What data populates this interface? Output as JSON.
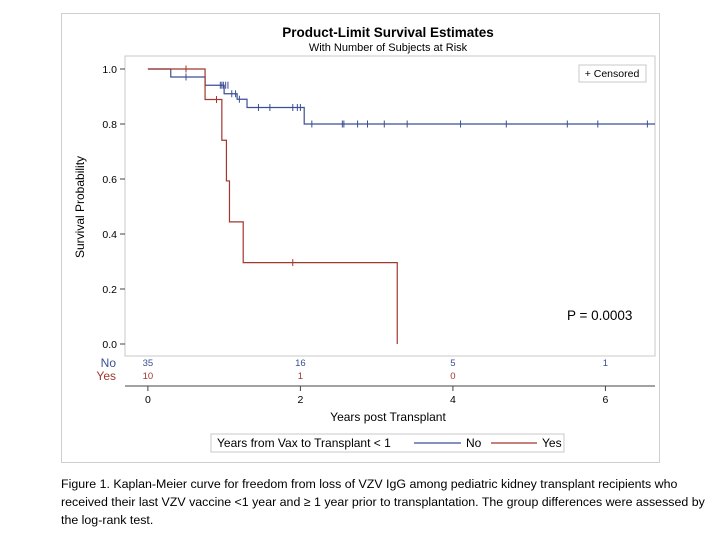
{
  "caption": "Figure 1. Kaplan-Meier curve for freedom from loss of VZV IgG among pediatric kidney transplant recipients who received their last VZV vaccine <1 year and ≥ 1 year prior to transplantation. The group differences were assessed by the log-rank test.",
  "chart_data": {
    "type": "line",
    "title": "Product-Limit Survival Estimates",
    "subtitle": "With Number of Subjects at Risk",
    "xlabel": "Years post Transplant",
    "ylabel": "Survival Probability",
    "xlim": [
      -0.3,
      6.65
    ],
    "ylim": [
      0,
      1.0
    ],
    "x_ticks": [
      0,
      2,
      4,
      6
    ],
    "x_tick_labels": [
      "0",
      "2",
      "4",
      "6"
    ],
    "y_ticks": [
      0,
      0.2,
      0.4,
      0.6,
      0.8,
      1.0
    ],
    "y_tick_labels": [
      "0.0",
      "0.2",
      "0.4",
      "0.6",
      "0.8",
      "1.0"
    ],
    "censored_label": "+ Censored",
    "annotation": "P = 0.0003",
    "legend_title": "Years from Vax to Transplant < 1",
    "legend_position": "bottom",
    "series": [
      {
        "name": "No",
        "color": "#3b4f95",
        "steps": [
          [
            0,
            1.0
          ],
          [
            0.3,
            0.971
          ],
          [
            0.75,
            0.941
          ],
          [
            1.0,
            0.91
          ],
          [
            1.17,
            0.89
          ],
          [
            1.3,
            0.86
          ],
          [
            2.05,
            0.8
          ],
          [
            6.65,
            0.8
          ]
        ],
        "censored": [
          [
            0.5,
            0.971
          ],
          [
            0.95,
            0.941
          ],
          [
            0.97,
            0.941
          ],
          [
            0.99,
            0.941
          ],
          [
            1.02,
            0.941
          ],
          [
            1.05,
            0.941
          ],
          [
            1.1,
            0.91
          ],
          [
            1.15,
            0.91
          ],
          [
            1.2,
            0.89
          ],
          [
            1.45,
            0.86
          ],
          [
            1.6,
            0.86
          ],
          [
            1.9,
            0.86
          ],
          [
            1.96,
            0.86
          ],
          [
            2.0,
            0.86
          ],
          [
            2.15,
            0.8
          ],
          [
            2.55,
            0.8
          ],
          [
            2.57,
            0.8
          ],
          [
            2.75,
            0.8
          ],
          [
            2.88,
            0.8
          ],
          [
            3.1,
            0.8
          ],
          [
            3.4,
            0.8
          ],
          [
            4.1,
            0.8
          ],
          [
            4.7,
            0.8
          ],
          [
            5.5,
            0.8
          ],
          [
            5.9,
            0.8
          ],
          [
            6.55,
            0.8
          ]
        ],
        "at_risk": [
          "35",
          "16",
          "5",
          "1"
        ]
      },
      {
        "name": "Yes",
        "color": "#a1372e",
        "steps": [
          [
            0,
            1.0
          ],
          [
            0.75,
            0.889
          ],
          [
            0.97,
            0.741
          ],
          [
            1.03,
            0.593
          ],
          [
            1.07,
            0.444
          ],
          [
            1.25,
            0.296
          ],
          [
            3.27,
            0.296
          ],
          [
            3.27,
            0.0
          ]
        ],
        "censored": [
          [
            0.5,
            1.0
          ],
          [
            0.9,
            0.889
          ],
          [
            1.9,
            0.296
          ]
        ],
        "at_risk": [
          "10",
          "1",
          "0"
        ]
      }
    ],
    "at_risk_x": [
      0,
      2,
      4,
      6
    ]
  }
}
